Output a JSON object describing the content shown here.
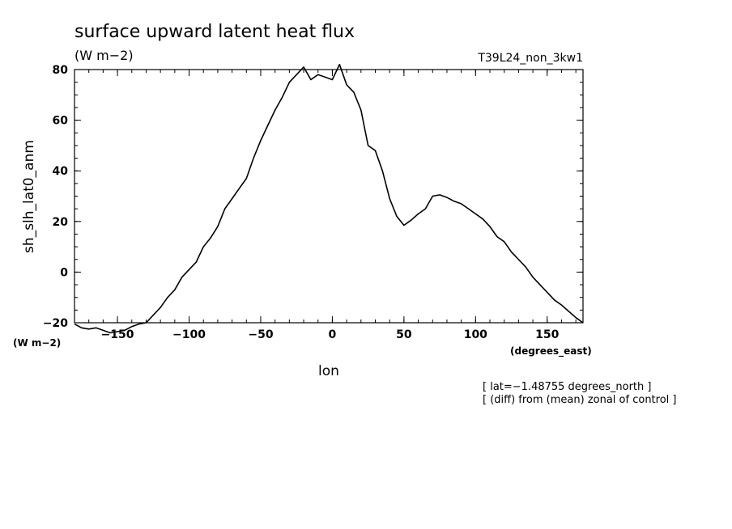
{
  "chart_data": {
    "type": "line",
    "title": "surface upward latent heat flux",
    "units": "(W m−2)",
    "run_label": "T39L24_non_3kw1",
    "xlabel": "lon",
    "x_units": "(degrees_east)",
    "ylabel": "sh_slh_lat0_anm",
    "y_units": "(W m−2)",
    "xlim": [
      -180,
      175
    ],
    "ylim": [
      -20,
      80
    ],
    "x_ticks": [
      -150,
      -100,
      -50,
      0,
      50,
      100,
      150
    ],
    "x_tick_labels": [
      "−150",
      "−100",
      "−50",
      "0",
      "50",
      "100",
      "150"
    ],
    "y_ticks": [
      -20,
      0,
      20,
      40,
      60,
      80
    ],
    "y_tick_labels": [
      "−20",
      "0",
      "20",
      "40",
      "60",
      "80"
    ],
    "notes": [
      "[ lat=−1.48755 degrees_north ]",
      "[ (diff) from (mean) zonal of control ]"
    ],
    "series": [
      {
        "x": [
          -180,
          -175,
          -170,
          -165,
          -160,
          -155,
          -150,
          -145,
          -140,
          -135,
          -130,
          -125,
          -120,
          -115,
          -110,
          -105,
          -100,
          -95,
          -90,
          -85,
          -80,
          -75,
          -70,
          -65,
          -60,
          -55,
          -50,
          -45,
          -40,
          -35,
          -30,
          -25,
          -20,
          -15,
          -10,
          -5,
          0,
          5,
          10,
          15,
          20,
          25,
          30,
          35,
          40,
          45,
          50,
          55,
          60,
          65,
          70,
          75,
          80,
          85,
          90,
          95,
          100,
          105,
          110,
          115,
          120,
          125,
          130,
          135,
          140,
          145,
          150,
          155,
          160,
          165,
          170,
          175
        ],
        "y": [
          -20.5,
          -22,
          -22.5,
          -22,
          -23,
          -24,
          -23.5,
          -23,
          -21.5,
          -20.5,
          -20,
          -17,
          -14,
          -10,
          -7,
          -2,
          1,
          4,
          10,
          13.5,
          18,
          25,
          29,
          33,
          37,
          45,
          52,
          58,
          64,
          69,
          75,
          78,
          81,
          76,
          78,
          77,
          76,
          82,
          74,
          71,
          64,
          50,
          48,
          40,
          29,
          22,
          18.5,
          20.5,
          23,
          25,
          30,
          30.5,
          29.5,
          28,
          27,
          25,
          23,
          21,
          18,
          14,
          12,
          8,
          5,
          2,
          -2,
          -5,
          -8,
          -11,
          -13,
          -15.5,
          -18,
          -20
        ]
      }
    ]
  }
}
